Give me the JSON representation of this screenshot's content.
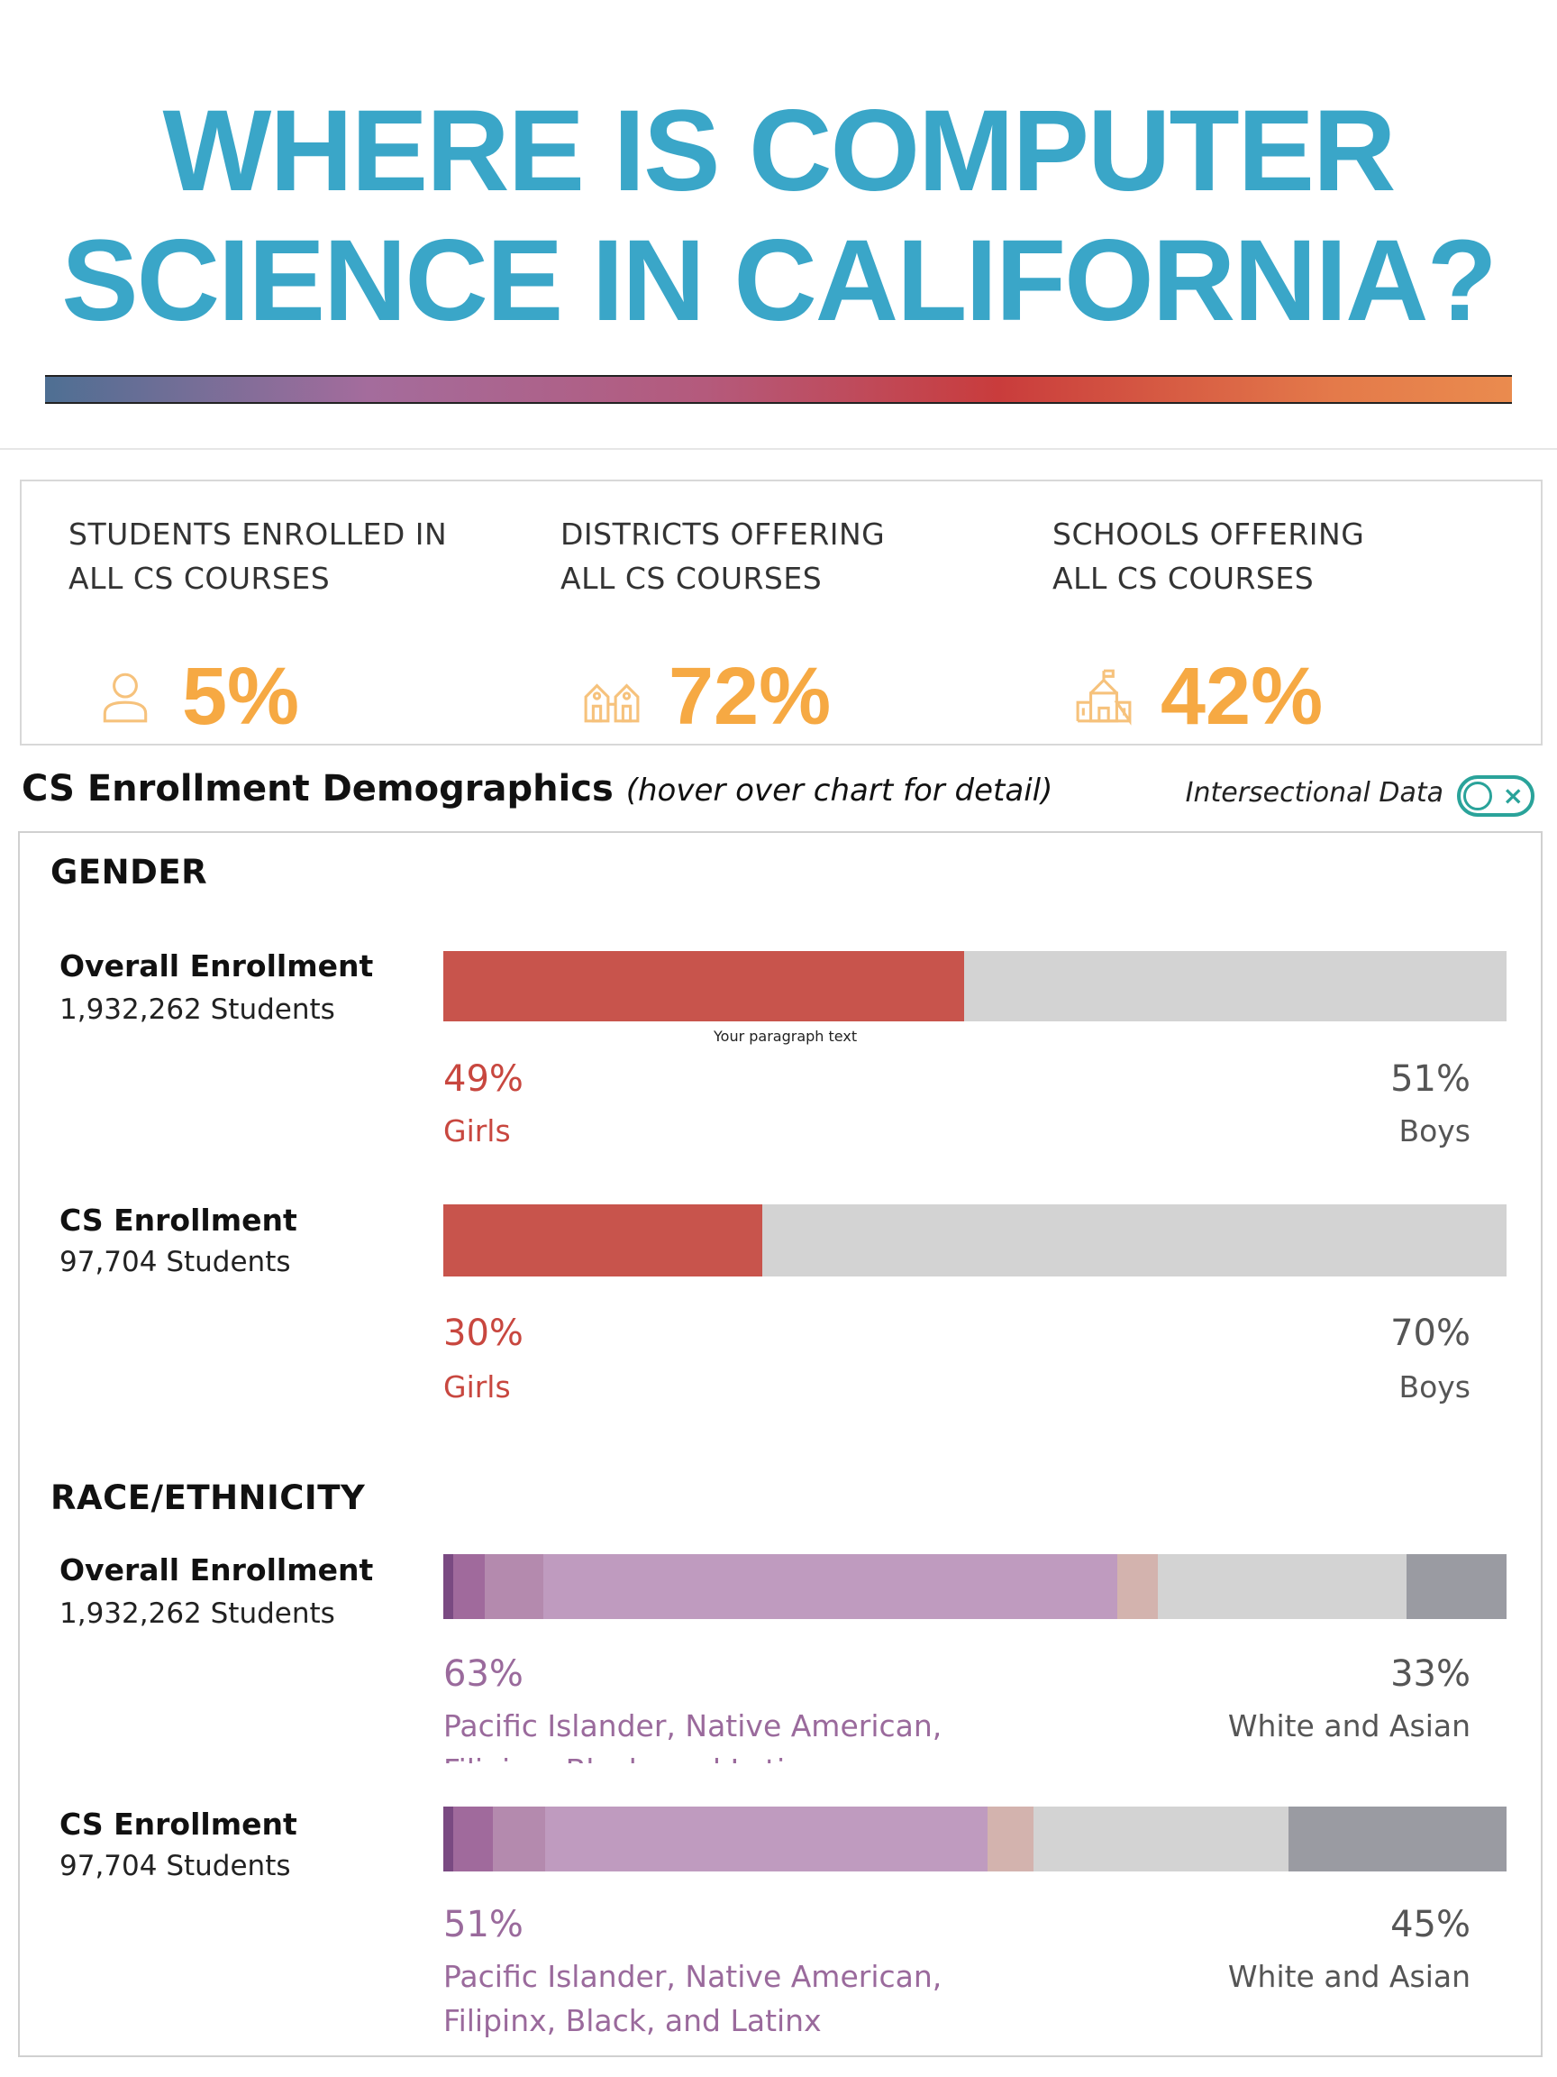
{
  "header": {
    "title_line1": "WHERE IS COMPUTER",
    "title_line2": "SCIENCE IN CALIFORNIA?"
  },
  "kpis": [
    {
      "label_line1": "STUDENTS ENROLLED IN",
      "label_line2": "ALL CS COURSES",
      "value": "5%",
      "icon": "person-icon"
    },
    {
      "label_line1": "DISTRICTS OFFERING",
      "label_line2": "ALL CS COURSES",
      "value": "72%",
      "icon": "district-schools-icon"
    },
    {
      "label_line1": "SCHOOLS OFFERING",
      "label_line2": "ALL CS COURSES",
      "value": "42%",
      "icon": "school-building-icon"
    }
  ],
  "demographics": {
    "title": "CS Enrollment Demographics",
    "subtitle": "(hover over chart for detail)",
    "toggle_label": "Intersectional Data",
    "toggle_state": "off"
  },
  "colors": {
    "title": "#3aa6c8",
    "kpi_value": "#f6a943",
    "girls": "#c8544c",
    "boys_bar": "#d3d3d3",
    "race_segments": [
      "#7a4a82",
      "#a06a9c",
      "#b48aae",
      "#bf9bbf",
      "#d3b3ae",
      "#d3d3d3",
      "#9a9ba2"
    ]
  },
  "paragraph_placeholder": "Your paragraph text",
  "chart_data": [
    {
      "type": "bar",
      "section": "GENDER",
      "label": "Overall Enrollment",
      "count": "1,932,262 Students",
      "series": [
        {
          "name": "Girls",
          "value": 49
        },
        {
          "name": "Boys",
          "value": 51
        }
      ],
      "left_pct": "49%",
      "left_cat": "Girls",
      "right_pct": "51%",
      "right_cat": "Boys"
    },
    {
      "type": "bar",
      "section": "GENDER",
      "label": "CS Enrollment",
      "count": "97,704 Students",
      "series": [
        {
          "name": "Girls",
          "value": 30
        },
        {
          "name": "Boys",
          "value": 70
        }
      ],
      "left_pct": "30%",
      "left_cat": "Girls",
      "right_pct": "70%",
      "right_cat": "Boys"
    },
    {
      "type": "bar",
      "section": "RACE/ETHNICITY",
      "label": "Overall Enrollment",
      "count": "1,932,262 Students",
      "segments": [
        0.6,
        2.0,
        3.7,
        36.0,
        2.5,
        15.6,
        6.3
      ],
      "left_pct": "63%",
      "left_cat_line1": "Pacific Islander, Native American,",
      "left_cat_line2": "Filipinx, Black, and Latinx",
      "right_pct": "33%",
      "right_cat": "White and Asian"
    },
    {
      "type": "bar",
      "section": "RACE/ETHNICITY",
      "label": "CS Enrollment",
      "count": "97,704 Students",
      "segments": [
        0.6,
        2.5,
        3.3,
        27.8,
        2.9,
        16.0,
        13.7
      ],
      "left_pct": "51%",
      "left_cat_line1": "Pacific Islander, Native American,",
      "left_cat_line2": "Filipinx, Black, and Latinx",
      "right_pct": "45%",
      "right_cat": "White and Asian"
    }
  ],
  "sections": {
    "gender": "GENDER",
    "race": "RACE/ETHNICITY"
  }
}
